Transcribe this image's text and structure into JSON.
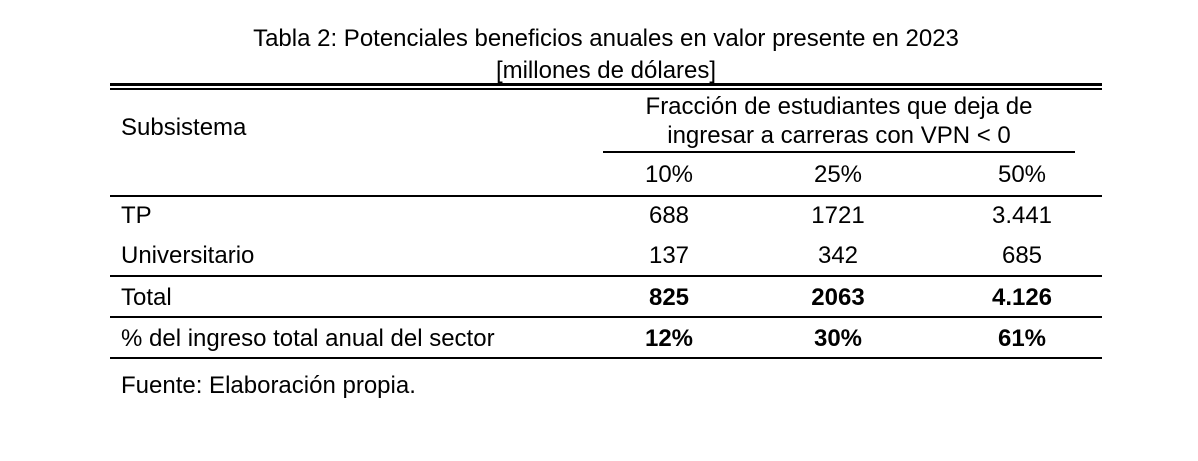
{
  "title_line1": "Tabla 2: Potenciales beneficios anuales en valor presente en 2023",
  "title_line2": "[millones de dólares]",
  "header": {
    "subsystem": "Subsistema",
    "group_line1": "Fracción de estudiantes que deja de",
    "group_line2": "ingresar a carreras con VPN < 0",
    "columns": [
      "10%",
      "25%",
      "50%"
    ]
  },
  "rows": [
    {
      "label": "TP",
      "values": [
        "688",
        "1721",
        "3.441"
      ],
      "bold": false
    },
    {
      "label": "Universitario",
      "values": [
        "137",
        "342",
        "685"
      ],
      "bold": false
    },
    {
      "label": "Total",
      "values": [
        "825",
        "2063",
        "4.126"
      ],
      "bold": true
    },
    {
      "label": "% del ingreso total anual del sector",
      "values": [
        "12%",
        "30%",
        "61%"
      ],
      "bold": true
    }
  ],
  "source": "Fuente: Elaboración propia."
}
